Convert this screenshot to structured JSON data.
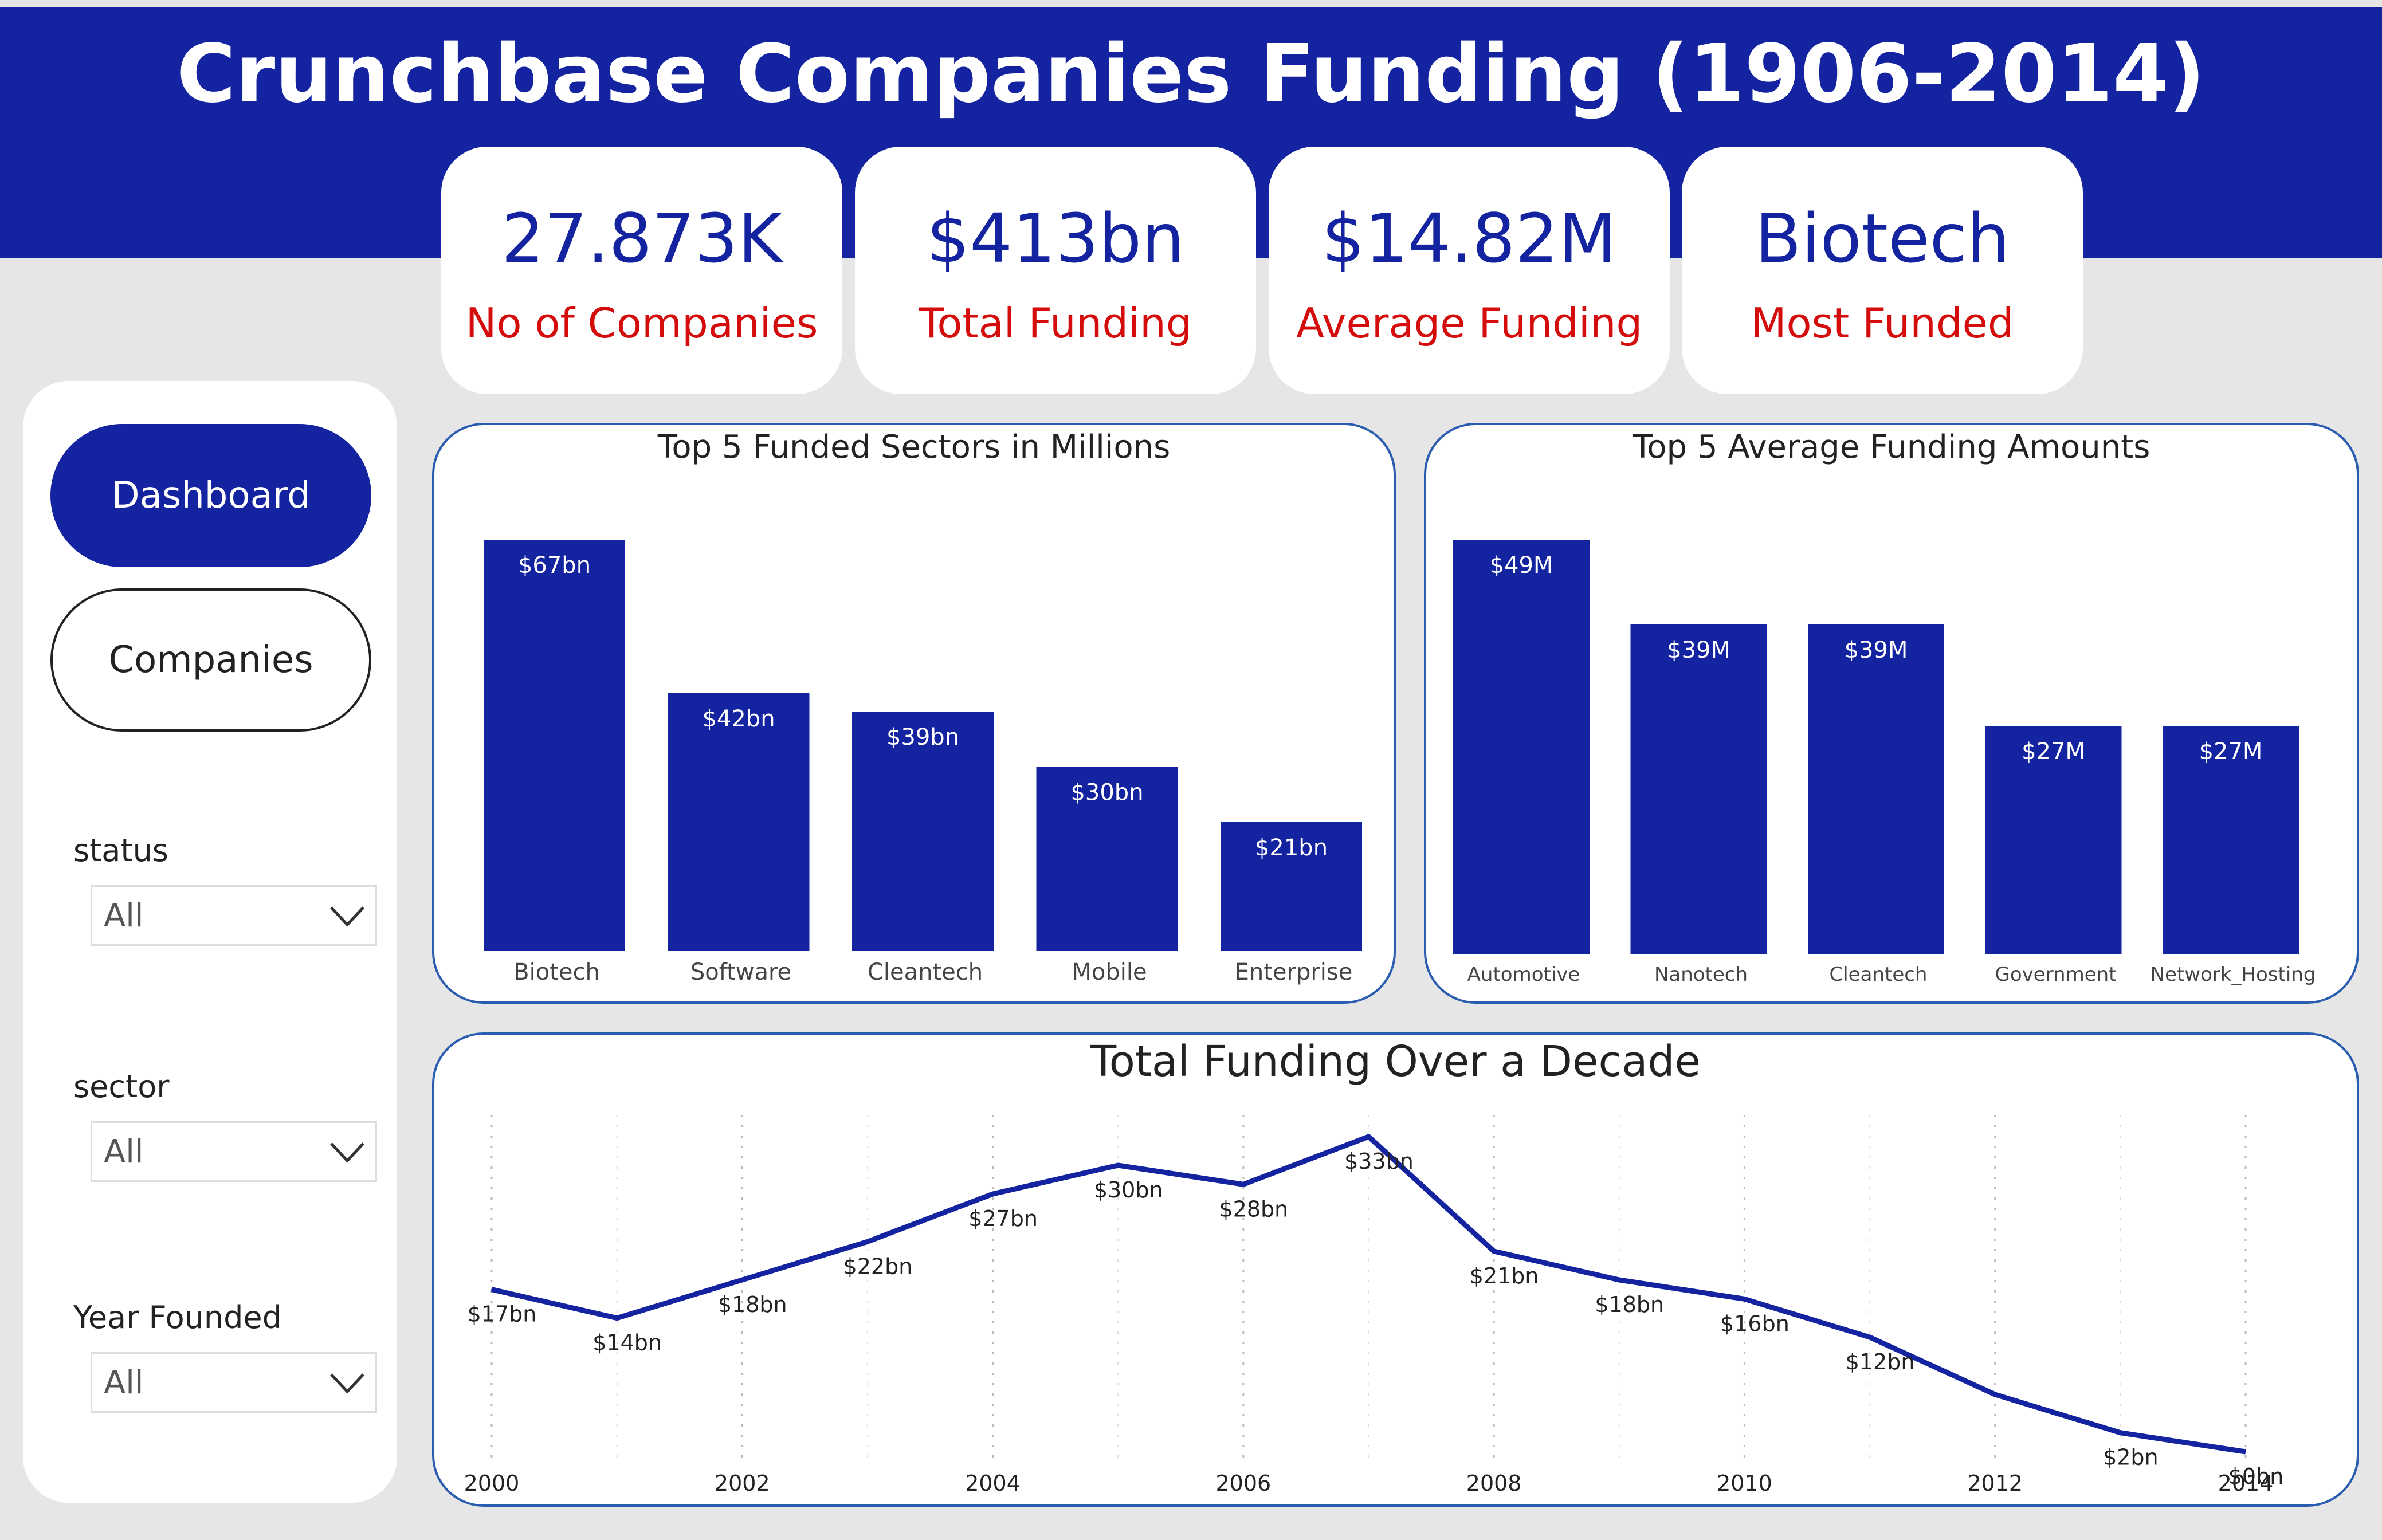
{
  "header": {
    "title": "Crunchbase Companies Funding (1906-2014)"
  },
  "kpis": [
    {
      "value": "27.873K",
      "label": "No of Companies"
    },
    {
      "value": "$413bn",
      "label": "Total Funding"
    },
    {
      "value": "$14.82M",
      "label": "Average Funding"
    },
    {
      "value": "Biotech",
      "label": "Most Funded"
    }
  ],
  "sidebar": {
    "nav": [
      {
        "label": "Dashboard"
      },
      {
        "label": "Companies"
      }
    ],
    "filters": [
      {
        "label": "status",
        "value": "All"
      },
      {
        "label": "sector",
        "value": "All"
      },
      {
        "label": "Year Founded",
        "value": "All"
      }
    ]
  },
  "colors": {
    "primary": "#1423a0",
    "kpi_label": "#d40c0c",
    "panel_border": "#2a5db0",
    "background": "#e6e6e6"
  },
  "chart_data": [
    {
      "type": "bar",
      "title": "Top 5 Funded Sectors in Millions",
      "categories": [
        "Biotech",
        "Software",
        "Cleantech",
        "Mobile",
        "Enterprise"
      ],
      "values": [
        67,
        42,
        39,
        30,
        21
      ],
      "data_labels": [
        "$67bn",
        "$42bn",
        "$39bn",
        "$30bn",
        "$21bn"
      ],
      "ylim": [
        0,
        67
      ],
      "grid": false
    },
    {
      "type": "bar",
      "title": "Top 5 Average Funding Amounts",
      "categories": [
        "Automotive",
        "Nanotech",
        "Cleantech",
        "Government",
        "Network_Hosting"
      ],
      "values": [
        49,
        39,
        39,
        27,
        27
      ],
      "data_labels": [
        "$49M",
        "$39M",
        "$39M",
        "$27M",
        "$27M"
      ],
      "ylim": [
        0,
        49
      ],
      "grid": false
    },
    {
      "type": "line",
      "title": "Total Funding Over a Decade",
      "x": [
        2000,
        2001,
        2002,
        2003,
        2004,
        2005,
        2006,
        2007,
        2008,
        2009,
        2010,
        2011,
        2012,
        2013,
        2014
      ],
      "values": [
        17,
        14,
        18,
        22,
        27,
        30,
        28,
        33,
        21,
        18,
        16,
        12,
        6,
        2,
        0
      ],
      "data_labels": [
        "$17bn",
        "$14bn",
        "$18bn",
        "$22bn",
        "$27bn",
        "$30bn",
        "$28bn",
        "$33bn",
        "$21bn",
        "$18bn",
        "$16bn",
        "$12bn",
        "",
        "$2bn",
        "$0bn"
      ],
      "xticks": [
        "2000",
        "2002",
        "2004",
        "2006",
        "2008",
        "2010",
        "2012",
        "2014"
      ],
      "ylim": [
        0,
        33
      ],
      "grid": true
    }
  ]
}
